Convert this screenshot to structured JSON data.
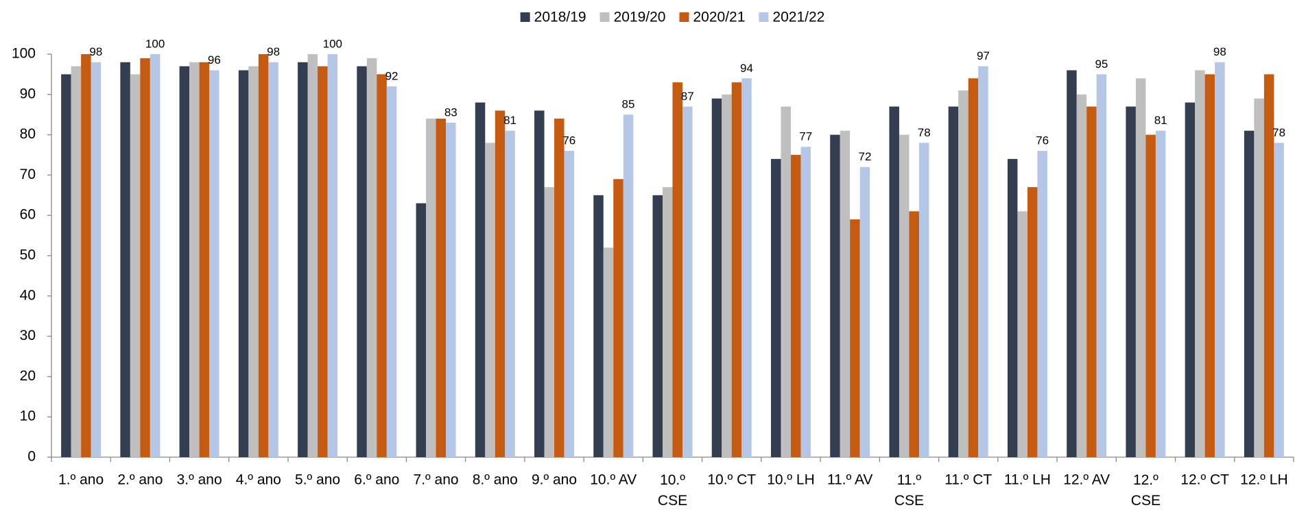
{
  "chart_data": {
    "type": "bar",
    "categories": [
      "1.º ano",
      "2.º ano",
      "3.º ano",
      "4.º ano",
      "5.º ano",
      "6.º ano",
      "7.º ano",
      "8.º ano",
      "9.º ano",
      "10.º AV",
      "10.º CSE",
      "10.º CT",
      "10.º LH",
      "11.º AV",
      "11.º CSE",
      "11.º CT",
      "11.º LH",
      "12.º AV",
      "12.º CSE",
      "12.º CT",
      "12.º LH"
    ],
    "series": [
      {
        "name": "2018/19",
        "color": "#333f50",
        "values": [
          95,
          98,
          97,
          96,
          98,
          97,
          63,
          88,
          86,
          65,
          65,
          89,
          74,
          80,
          87,
          87,
          74,
          96,
          87,
          88,
          81
        ]
      },
      {
        "name": "2019/20",
        "color": "#bfbfbf",
        "values": [
          97,
          95,
          98,
          97,
          100,
          99,
          84,
          78,
          67,
          52,
          67,
          90,
          87,
          81,
          80,
          91,
          61,
          90,
          94,
          96,
          89
        ]
      },
      {
        "name": "2020/21",
        "color": "#c55a11",
        "values": [
          100,
          99,
          98,
          100,
          97,
          95,
          84,
          86,
          84,
          69,
          93,
          93,
          75,
          59,
          61,
          94,
          67,
          87,
          80,
          95,
          95
        ]
      },
      {
        "name": "2021/22",
        "color": "#b4c7e7",
        "values": [
          98,
          100,
          96,
          98,
          100,
          92,
          83,
          81,
          76,
          85,
          87,
          94,
          77,
          72,
          78,
          97,
          76,
          95,
          81,
          98,
          78
        ],
        "data_labels": true
      }
    ],
    "ylim": [
      0,
      100
    ],
    "yticks": [
      0,
      10,
      20,
      30,
      40,
      50,
      60,
      70,
      80,
      90,
      100
    ],
    "grid": false,
    "legend": "top"
  }
}
